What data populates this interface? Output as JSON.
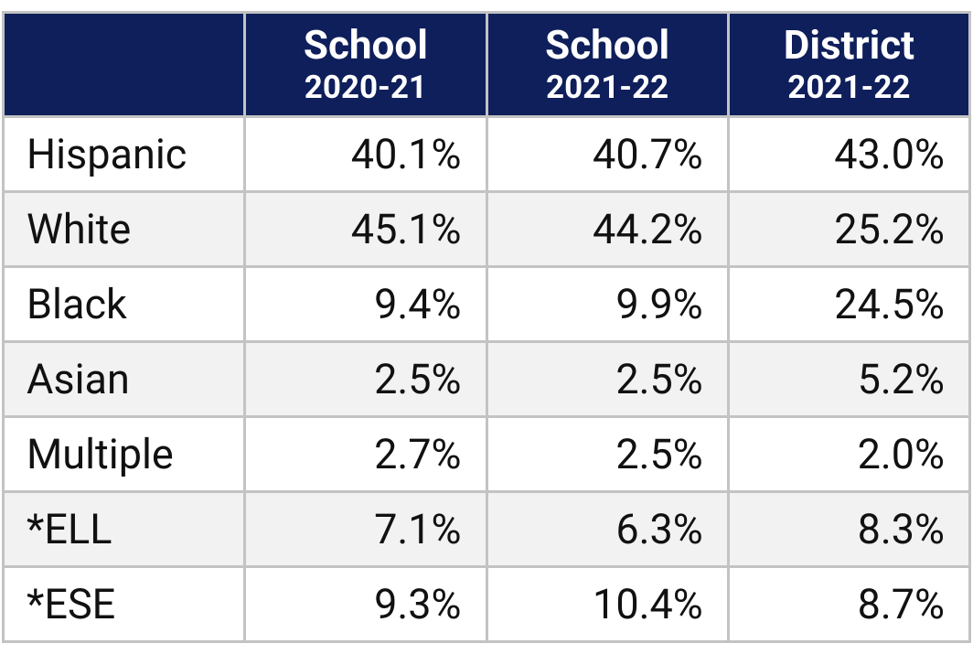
{
  "table": {
    "header": [
      {
        "line1": "School",
        "line2": "2020-21"
      },
      {
        "line1": "School",
        "line2": "2021-22"
      },
      {
        "line1": "District",
        "line2": "2021-22"
      }
    ],
    "rows": [
      [
        "Hispanic",
        "40.1%",
        "40.7%",
        "43.0%"
      ],
      [
        "White",
        "45.1%",
        "44.2%",
        "25.2%"
      ],
      [
        "Black",
        "9.4%",
        "9.9%",
        "24.5%"
      ],
      [
        "Asian",
        "2.5%",
        "2.5%",
        "5.2%"
      ],
      [
        "Multiple",
        "2.7%",
        "2.5%",
        "2.0%"
      ],
      [
        "*ELL",
        "7.1%",
        "6.3%",
        "8.3%"
      ],
      [
        "*ESE",
        "9.3%",
        "10.4%",
        "8.7%"
      ]
    ]
  }
}
